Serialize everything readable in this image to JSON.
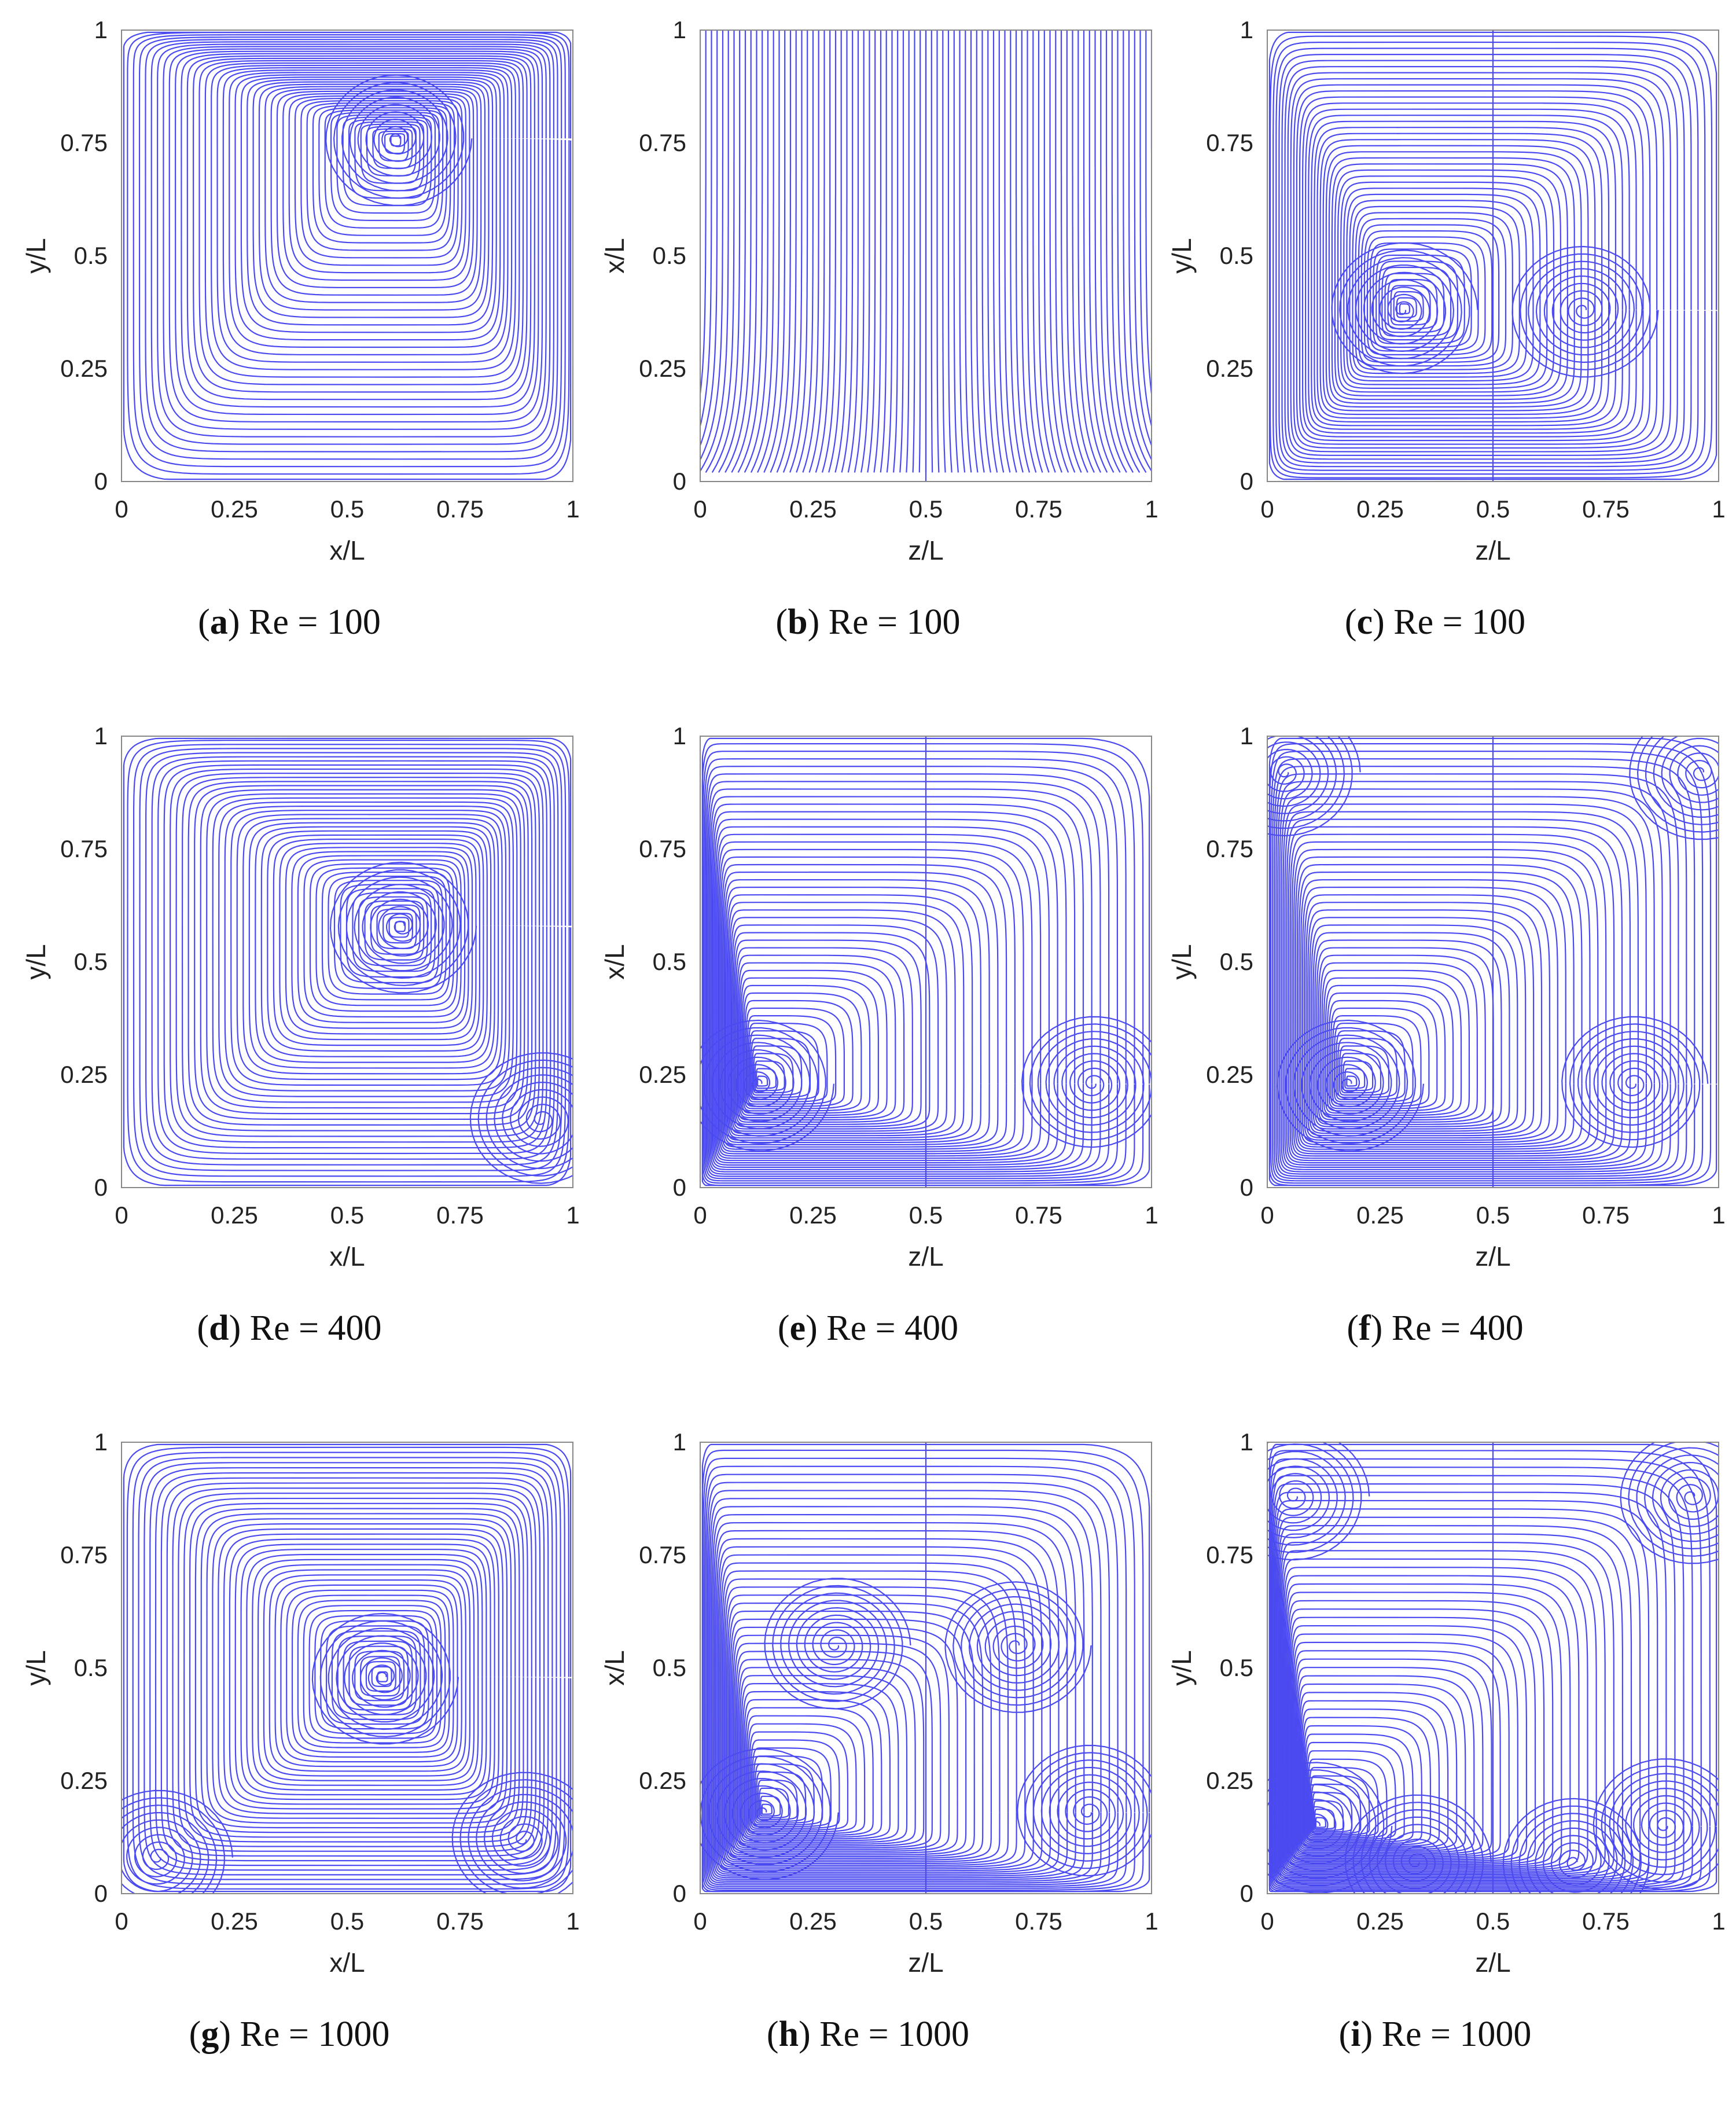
{
  "figure": {
    "line_color": "#4a4af0",
    "frame_color": "#888888",
    "ticks": [
      0,
      0.25,
      0.5,
      0.75,
      1
    ],
    "tick_labels": [
      "0",
      "0.25",
      "0.5",
      "0.75",
      "1"
    ]
  },
  "chart_data": [
    {
      "type": "streamline",
      "panel": "a",
      "re": "100",
      "xlabel": "x/L",
      "ylabel": "y/L",
      "xlim": [
        0,
        1
      ],
      "ylim": [
        0,
        1
      ],
      "label": "Re = 100",
      "vortices": [
        {
          "x": 0.61,
          "y": 0.76,
          "dir": 1
        }
      ]
    },
    {
      "type": "streamline",
      "panel": "b",
      "re": "100",
      "xlabel": "z/L",
      "ylabel": "x/L",
      "xlim": [
        0,
        1
      ],
      "ylim": [
        0,
        1
      ],
      "label": "Re = 100",
      "vortices": []
    },
    {
      "type": "streamline",
      "panel": "c",
      "re": "100",
      "xlabel": "z/L",
      "ylabel": "y/L",
      "xlim": [
        0,
        1
      ],
      "ylim": [
        0,
        1
      ],
      "label": "Re = 100",
      "vortices": [
        {
          "x": 0.3,
          "y": 0.38,
          "dir": -1
        },
        {
          "x": 0.7,
          "y": 0.38,
          "dir": 1
        }
      ]
    },
    {
      "type": "streamline",
      "panel": "d",
      "re": "400",
      "xlabel": "x/L",
      "ylabel": "y/L",
      "xlim": [
        0,
        1
      ],
      "ylim": [
        0,
        1
      ],
      "label": "Re = 400",
      "vortices": [
        {
          "x": 0.62,
          "y": 0.58,
          "dir": 1
        },
        {
          "x": 0.93,
          "y": 0.15,
          "dir": -1
        }
      ]
    },
    {
      "type": "streamline",
      "panel": "e",
      "re": "400",
      "xlabel": "z/L",
      "ylabel": "x/L",
      "xlim": [
        0,
        1
      ],
      "ylim": [
        0,
        1
      ],
      "label": "Re = 400",
      "vortices": [
        {
          "x": 0.13,
          "y": 0.23,
          "dir": 1
        },
        {
          "x": 0.87,
          "y": 0.23,
          "dir": -1
        }
      ]
    },
    {
      "type": "streamline",
      "panel": "f",
      "re": "400",
      "xlabel": "z/L",
      "ylabel": "y/L",
      "xlim": [
        0,
        1
      ],
      "ylim": [
        0,
        1
      ],
      "label": "Re = 400",
      "vortices": [
        {
          "x": 0.18,
          "y": 0.23,
          "dir": 1
        },
        {
          "x": 0.81,
          "y": 0.23,
          "dir": -1
        },
        {
          "x": 0.04,
          "y": 0.92,
          "dir": -1
        },
        {
          "x": 0.96,
          "y": 0.92,
          "dir": 1
        }
      ]
    },
    {
      "type": "streamline",
      "panel": "g",
      "re": "1000",
      "xlabel": "x/L",
      "ylabel": "y/L",
      "xlim": [
        0,
        1
      ],
      "ylim": [
        0,
        1
      ],
      "label": "Re = 1000",
      "vortices": [
        {
          "x": 0.58,
          "y": 0.48,
          "dir": 1
        },
        {
          "x": 0.08,
          "y": 0.08,
          "dir": -1
        },
        {
          "x": 0.89,
          "y": 0.12,
          "dir": -1
        }
      ]
    },
    {
      "type": "streamline",
      "panel": "h",
      "re": "1000",
      "xlabel": "z/L",
      "ylabel": "x/L",
      "xlim": [
        0,
        1
      ],
      "ylim": [
        0,
        1
      ],
      "label": "Re = 1000",
      "vortices": [
        {
          "x": 0.14,
          "y": 0.18,
          "dir": 1
        },
        {
          "x": 0.86,
          "y": 0.18,
          "dir": -1
        },
        {
          "x": 0.3,
          "y": 0.55,
          "dir": -1
        },
        {
          "x": 0.7,
          "y": 0.55,
          "dir": 1
        }
      ]
    },
    {
      "type": "streamline",
      "panel": "i",
      "re": "1000",
      "xlabel": "z/L",
      "ylabel": "y/L",
      "xlim": [
        0,
        1
      ],
      "ylim": [
        0,
        1
      ],
      "label": "Re = 1000",
      "vortices": [
        {
          "x": 0.11,
          "y": 0.15,
          "dir": 1
        },
        {
          "x": 0.88,
          "y": 0.15,
          "dir": -1
        },
        {
          "x": 0.06,
          "y": 0.88,
          "dir": -1
        },
        {
          "x": 0.94,
          "y": 0.88,
          "dir": 1
        },
        {
          "x": 0.33,
          "y": 0.07,
          "dir": -1
        },
        {
          "x": 0.68,
          "y": 0.07,
          "dir": 1
        }
      ]
    }
  ]
}
